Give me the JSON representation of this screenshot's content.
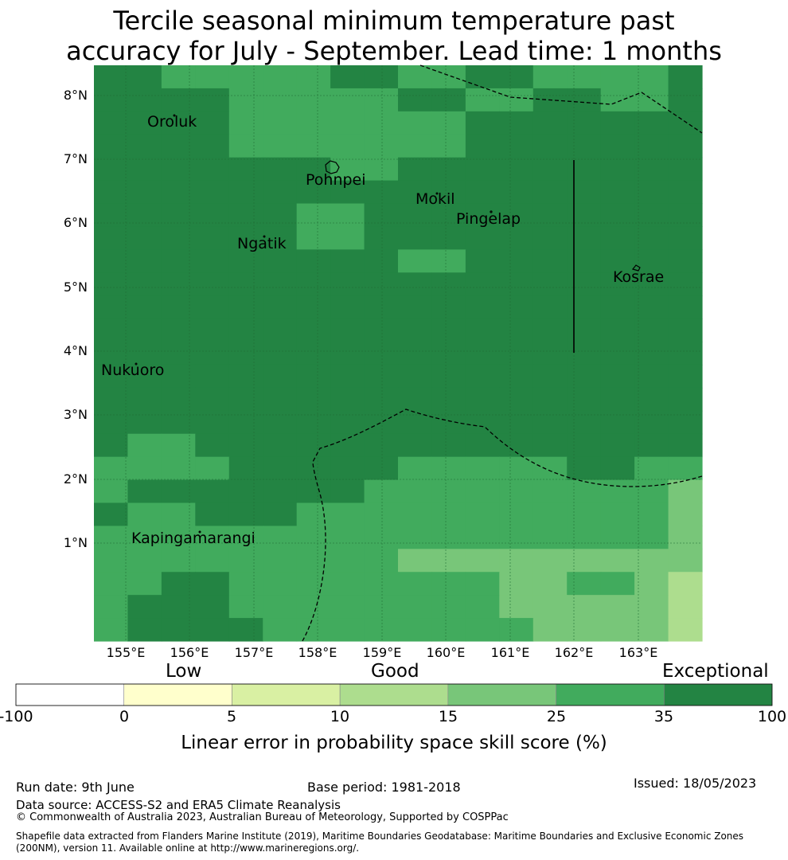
{
  "title_line1": "Tercile seasonal minimum temperature past",
  "title_line2": "accuracy for July - September. Lead time: 1 months",
  "map": {
    "lon_ticks": [
      "155°E",
      "156°E",
      "157°E",
      "158°E",
      "159°E",
      "160°E",
      "161°E",
      "162°E",
      "163°E"
    ],
    "lat_ticks": [
      "8°N",
      "7°N",
      "6°N",
      "5°N",
      "4°N",
      "3°N",
      "2°N",
      "1°N"
    ],
    "places": [
      {
        "name": "Oroluk"
      },
      {
        "name": "Pohnpei"
      },
      {
        "name": "Mokil"
      },
      {
        "name": "Pingelap"
      },
      {
        "name": "Ngatik"
      },
      {
        "name": "Kosrae"
      },
      {
        "name": "Nukuoro"
      },
      {
        "name": "Kapingamarangi"
      }
    ],
    "grid_levels": [
      [
        6,
        6,
        5,
        5,
        5,
        5,
        5,
        6,
        6,
        5,
        5,
        6,
        6,
        5,
        5,
        5,
        5,
        6
      ],
      [
        6,
        6,
        6,
        6,
        5,
        5,
        5,
        5,
        5,
        6,
        6,
        5,
        5,
        6,
        6,
        5,
        5,
        6
      ],
      [
        6,
        6,
        6,
        6,
        5,
        5,
        5,
        5,
        5,
        5,
        5,
        6,
        6,
        6,
        6,
        6,
        6,
        6
      ],
      [
        6,
        6,
        6,
        6,
        5,
        5,
        5,
        5,
        5,
        5,
        5,
        6,
        6,
        6,
        6,
        6,
        6,
        6
      ],
      [
        6,
        6,
        6,
        6,
        6,
        6,
        6,
        5,
        5,
        6,
        6,
        6,
        6,
        6,
        6,
        6,
        6,
        6
      ],
      [
        6,
        6,
        6,
        6,
        6,
        6,
        6,
        6,
        6,
        6,
        6,
        6,
        6,
        6,
        6,
        6,
        6,
        6
      ],
      [
        6,
        6,
        6,
        6,
        6,
        6,
        5,
        5,
        6,
        6,
        6,
        6,
        6,
        6,
        6,
        6,
        6,
        6
      ],
      [
        6,
        6,
        6,
        6,
        6,
        6,
        5,
        5,
        6,
        6,
        6,
        6,
        6,
        6,
        6,
        6,
        6,
        6
      ],
      [
        6,
        6,
        6,
        6,
        6,
        6,
        6,
        6,
        6,
        5,
        5,
        6,
        6,
        6,
        6,
        6,
        6,
        6
      ],
      [
        6,
        6,
        6,
        6,
        6,
        6,
        6,
        6,
        6,
        6,
        6,
        6,
        6,
        6,
        6,
        6,
        6,
        6
      ],
      [
        6,
        6,
        6,
        6,
        6,
        6,
        6,
        6,
        6,
        6,
        6,
        6,
        6,
        6,
        6,
        6,
        6,
        6
      ],
      [
        6,
        6,
        6,
        6,
        6,
        6,
        6,
        6,
        6,
        6,
        6,
        6,
        6,
        6,
        6,
        6,
        6,
        6
      ],
      [
        6,
        6,
        6,
        6,
        6,
        6,
        6,
        6,
        6,
        6,
        6,
        6,
        6,
        6,
        6,
        6,
        6,
        6
      ],
      [
        6,
        6,
        6,
        6,
        6,
        6,
        6,
        6,
        6,
        6,
        6,
        6,
        6,
        6,
        6,
        6,
        6,
        6
      ],
      [
        6,
        6,
        6,
        6,
        6,
        6,
        6,
        6,
        6,
        6,
        6,
        6,
        6,
        6,
        6,
        6,
        6,
        6
      ],
      [
        6,
        6,
        6,
        6,
        6,
        6,
        6,
        6,
        6,
        6,
        6,
        6,
        6,
        6,
        6,
        6,
        6,
        6
      ],
      [
        6,
        5,
        5,
        6,
        6,
        6,
        6,
        6,
        6,
        6,
        6,
        6,
        6,
        6,
        6,
        6,
        6,
        6
      ],
      [
        5,
        5,
        5,
        5,
        6,
        6,
        6,
        6,
        6,
        5,
        5,
        5,
        5,
        5,
        6,
        6,
        5,
        5
      ],
      [
        5,
        6,
        6,
        6,
        6,
        6,
        6,
        6,
        5,
        5,
        5,
        5,
        5,
        5,
        5,
        5,
        5,
        4
      ],
      [
        6,
        5,
        5,
        6,
        6,
        6,
        5,
        5,
        5,
        5,
        5,
        5,
        5,
        5,
        5,
        5,
        5,
        4
      ],
      [
        5,
        5,
        5,
        5,
        5,
        5,
        5,
        5,
        5,
        5,
        5,
        5,
        5,
        5,
        5,
        5,
        5,
        4
      ],
      [
        5,
        5,
        5,
        5,
        5,
        5,
        5,
        5,
        5,
        4,
        4,
        4,
        4,
        4,
        4,
        4,
        4,
        4
      ],
      [
        5,
        5,
        6,
        6,
        5,
        5,
        5,
        5,
        5,
        5,
        5,
        5,
        4,
        4,
        5,
        5,
        4,
        3
      ],
      [
        5,
        6,
        6,
        6,
        5,
        5,
        5,
        5,
        5,
        5,
        5,
        5,
        4,
        4,
        4,
        4,
        4,
        3
      ],
      [
        5,
        6,
        6,
        6,
        6,
        5,
        5,
        5,
        5,
        5,
        5,
        5,
        5,
        4,
        4,
        4,
        4,
        3
      ]
    ]
  },
  "colorbar": {
    "colors": [
      "#ffffff",
      "#ffffcc",
      "#d9f0a3",
      "#addd8e",
      "#78c679",
      "#41ab5d",
      "#238443"
    ],
    "categories": {
      "low": "Low",
      "good": "Good",
      "exceptional": "Exceptional"
    },
    "ticks": [
      "-100",
      "0",
      "5",
      "10",
      "15",
      "25",
      "35",
      "100"
    ],
    "label": "Linear error in probability space skill score (%)"
  },
  "footer": {
    "run_date": "Run date: 9th June",
    "base_period": "Base period: 1981-2018",
    "issued": "Issued: 18/05/2023",
    "data_source": "Data source: ACCESS-S2 and ERA5 Climate Reanalysis",
    "copyright": "© Commonwealth of Australia 2023, Australian Bureau of Meteorology, Supported by COSPPac",
    "shapefile": "Shapefile data extracted from Flanders Marine Institute (2019), Maritime Boundaries Geodatabase: Maritime Boundaries and Exclusive Economic Zones (200NM), version 11. Available online at http://www.marineregions.org/."
  }
}
